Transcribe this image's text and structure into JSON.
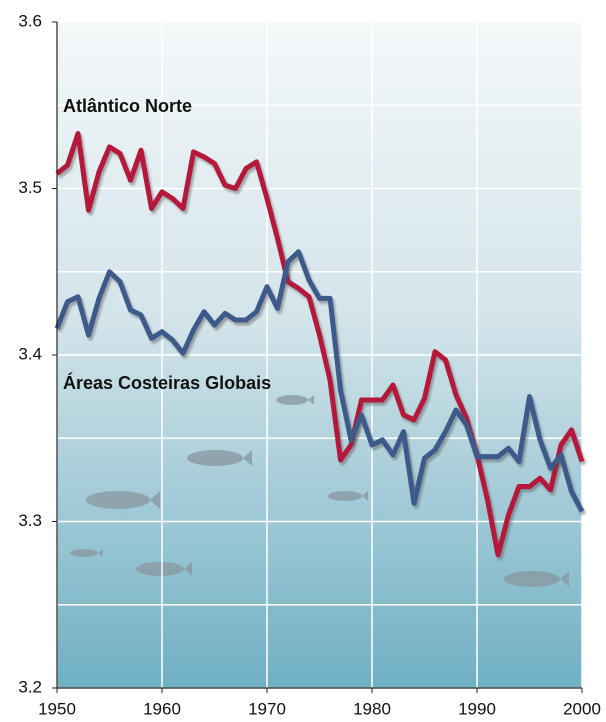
{
  "chart_data": {
    "type": "line",
    "x": [
      1950,
      1951,
      1952,
      1953,
      1954,
      1955,
      1956,
      1957,
      1958,
      1959,
      1960,
      1961,
      1962,
      1963,
      1964,
      1965,
      1966,
      1967,
      1968,
      1969,
      1970,
      1971,
      1972,
      1973,
      1974,
      1975,
      1976,
      1977,
      1978,
      1979,
      1980,
      1981,
      1982,
      1983,
      1984,
      1985,
      1986,
      1987,
      1988,
      1989,
      1990,
      1991,
      1992,
      1993,
      1994,
      1995,
      1996,
      1997,
      1998,
      1999,
      2000
    ],
    "series": [
      {
        "name": "Atlântico Norte",
        "color": "#b5183a",
        "values": [
          3.509,
          3.514,
          3.533,
          3.487,
          3.51,
          3.525,
          3.521,
          3.505,
          3.523,
          3.488,
          3.498,
          3.494,
          3.488,
          3.522,
          3.519,
          3.515,
          3.502,
          3.5,
          3.512,
          3.516,
          3.494,
          3.47,
          3.444,
          3.44,
          3.435,
          3.412,
          3.385,
          3.337,
          3.346,
          3.373,
          3.373,
          3.373,
          3.382,
          3.364,
          3.361,
          3.374,
          3.402,
          3.397,
          3.376,
          3.362,
          3.34,
          3.313,
          3.28,
          3.304,
          3.321,
          3.321,
          3.326,
          3.319,
          3.346,
          3.355,
          3.336
        ]
      },
      {
        "name": "Áreas Costeiras Globais",
        "color": "#3d5a8a",
        "values": [
          3.416,
          3.432,
          3.435,
          3.412,
          3.434,
          3.45,
          3.444,
          3.427,
          3.424,
          3.41,
          3.414,
          3.409,
          3.401,
          3.415,
          3.426,
          3.418,
          3.425,
          3.421,
          3.421,
          3.426,
          3.441,
          3.428,
          3.456,
          3.462,
          3.445,
          3.434,
          3.434,
          3.379,
          3.349,
          3.364,
          3.346,
          3.349,
          3.34,
          3.354,
          3.311,
          3.338,
          3.343,
          3.354,
          3.367,
          3.358,
          3.339,
          3.339,
          3.339,
          3.344,
          3.336,
          3.375,
          3.349,
          3.332,
          3.34,
          3.318,
          3.306
        ]
      }
    ],
    "xlim": [
      1950,
      2000
    ],
    "xticks": [
      1950,
      1960,
      1970,
      1980,
      1990,
      2000
    ],
    "ylim": [
      3.2,
      3.6
    ],
    "yticks": [
      3.2,
      3.3,
      3.4,
      3.5,
      3.6
    ],
    "y_minor_ticks": [
      3.25,
      3.35,
      3.45,
      3.55
    ],
    "grid": true
  }
}
